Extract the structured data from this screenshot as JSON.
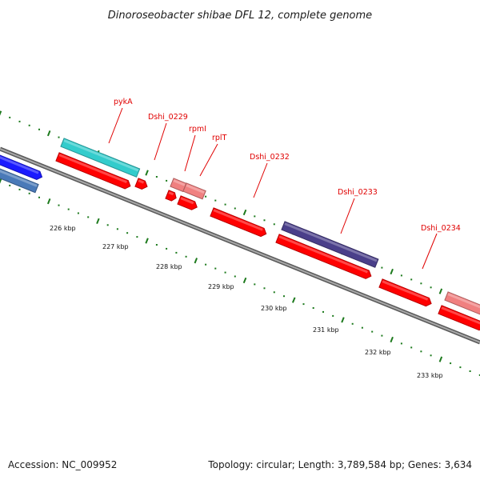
{
  "title": "Dinoroseobacter shibae DFL 12, complete genome",
  "footer": {
    "accession": "Accession: NC_009952",
    "stats": "Topology: circular; Length: 3,789,584 bp; Genes: 3,634"
  },
  "colors": {
    "backbone": "#7a7a7a",
    "ticks": "#1d7a1d",
    "label": "#e00000",
    "cds": "#ff0000",
    "cds_light": "#f08080",
    "cyan": "#33cccc",
    "purple": "#4a3f8a",
    "blue": "#1a1aff",
    "steel": "#4a7ab8"
  },
  "scale": {
    "unit": "kbp",
    "tick_labels": [
      "226 kbp",
      "227 kbp",
      "228 kbp",
      "229 kbp",
      "230 kbp",
      "231 kbp",
      "232 kbp",
      "233 kbp"
    ]
  },
  "genes": [
    {
      "name": "",
      "track": "outer",
      "color_key": "blue",
      "strand": "forward"
    },
    {
      "name": "",
      "track": "inner",
      "color_key": "steel",
      "strand": "forward"
    },
    {
      "name": "pykA",
      "track": "outer",
      "color_key": "cyan",
      "strand": "forward"
    },
    {
      "name": "",
      "track": "inner",
      "color_key": "cds",
      "strand": "forward"
    },
    {
      "name": "",
      "track": "inner",
      "color_key": "cds",
      "strand": "forward"
    },
    {
      "name": "Dshi_0229",
      "track": "outer",
      "color_key": "cds_light",
      "strand": "forward"
    },
    {
      "name": "rpmI",
      "track": "outer",
      "color_key": "cds_light",
      "strand": "forward"
    },
    {
      "name": "rplT",
      "track": "inner",
      "color_key": "cds",
      "strand": "forward"
    },
    {
      "name": "",
      "track": "inner",
      "color_key": "cds",
      "strand": "forward"
    },
    {
      "name": "Dshi_0232",
      "track": "inner",
      "color_key": "cds",
      "strand": "forward"
    },
    {
      "name": "Dshi_0233",
      "track": "outer",
      "color_key": "purple",
      "strand": "forward"
    },
    {
      "name": "",
      "track": "inner",
      "color_key": "cds",
      "strand": "forward"
    },
    {
      "name": "Dshi_0234",
      "track": "inner",
      "color_key": "cds",
      "strand": "forward"
    },
    {
      "name": "",
      "track": "outer",
      "color_key": "cds_light",
      "strand": "forward"
    },
    {
      "name": "",
      "track": "inner",
      "color_key": "cds",
      "strand": "forward"
    }
  ]
}
